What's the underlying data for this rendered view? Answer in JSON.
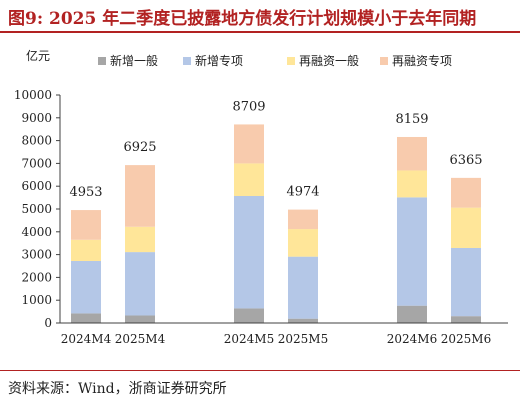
{
  "header": {
    "title": "图9:   2025 年二季度已披露地方债发行计划规模小于去年同期"
  },
  "footer": {
    "source": "资料来源：Wind，浙商证券研究所"
  },
  "chart_data": {
    "type": "bar",
    "stacked": true,
    "ylabel": "亿元",
    "ylim": [
      0,
      10000
    ],
    "yticks": [
      0,
      1000,
      2000,
      3000,
      4000,
      5000,
      6000,
      7000,
      8000,
      9000,
      10000
    ],
    "grid": false,
    "legend_position": "top",
    "categories": [
      "2024M4",
      "2025M4",
      "2024M5",
      "2025M5",
      "2024M6",
      "2025M6"
    ],
    "groups": [
      [
        0,
        1
      ],
      [
        2,
        3
      ],
      [
        4,
        5
      ]
    ],
    "series": [
      {
        "name": "新增一般",
        "color": "#a6a6a6",
        "values": [
          420,
          330,
          640,
          190,
          760,
          300
        ]
      },
      {
        "name": "新增专项",
        "color": "#b4c7e7",
        "values": [
          2300,
          2780,
          4930,
          2720,
          4750,
          2990
        ]
      },
      {
        "name": "再融资一般",
        "color": "#ffe699",
        "values": [
          930,
          1110,
          1430,
          1210,
          1180,
          1770
        ]
      },
      {
        "name": "再融资专项",
        "color": "#f8cbad",
        "values": [
          1303,
          2705,
          1709,
          854,
          1469,
          1305
        ]
      }
    ],
    "totals": [
      4953,
      6925,
      8709,
      4974,
      8159,
      6365
    ]
  }
}
